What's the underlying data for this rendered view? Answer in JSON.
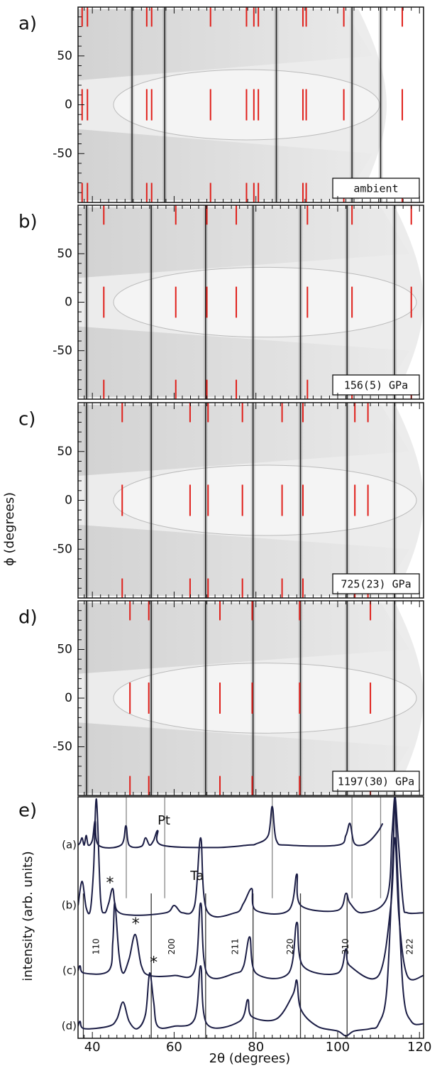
{
  "chart_data": {
    "type": "diffraction-panels",
    "xlabel": "2θ (degrees)",
    "xlim": [
      36.5,
      121
    ],
    "xticks": [
      40,
      60,
      80,
      100,
      120
    ],
    "xminorticks": [
      38,
      42,
      44,
      46,
      48,
      50,
      52,
      54,
      56,
      58,
      62,
      64,
      66,
      68,
      70,
      72,
      74,
      76,
      78,
      82,
      84,
      86,
      88,
      90,
      92,
      94,
      96,
      98,
      102,
      104,
      106,
      108,
      110,
      112,
      114,
      116,
      118
    ],
    "image_panels": {
      "ylabel": "ϕ (degrees)",
      "ylim": [
        -100,
        100
      ],
      "yticks": [
        -50,
        0,
        50
      ],
      "yminorticks": [
        -90,
        -80,
        -70,
        -60,
        -40,
        -30,
        -20,
        -10,
        10,
        20,
        30,
        40,
        60,
        70,
        80,
        90
      ],
      "panels": [
        {
          "label": "a)",
          "condition": "ambient",
          "black_lines": [
            49.7,
            57.7,
            85,
            103.5,
            110.5
          ],
          "red_lines": [
            37.5,
            38.8,
            53.3,
            54.5,
            68.9,
            77.7,
            79.5,
            80.6,
            91.5,
            92.3,
            101.5,
            115.8
          ]
        },
        {
          "label": "b)",
          "condition": "156(5) GPa",
          "black_lines": [
            38.6,
            54.4,
            67.7,
            79.3,
            90.9,
            102.3,
            113.9
          ],
          "red_lines": [
            42.8,
            60.4,
            68,
            75.2,
            92.6,
            103.5,
            118
          ]
        },
        {
          "label": "c)",
          "condition": "725(23) GPa",
          "black_lines": [
            38.6,
            54.4,
            67.7,
            79.3,
            90.9,
            102.3,
            113.9
          ],
          "red_lines": [
            47.3,
            63.9,
            68.3,
            76.7,
            86.4,
            91.5,
            104.2,
            107.4
          ]
        },
        {
          "label": "d)",
          "condition": "1197(30) GPa",
          "black_lines": [
            38.6,
            54.4,
            67.7,
            79.3,
            90.9,
            102.3,
            113.9
          ],
          "red_lines": [
            49.2,
            53.8,
            71.2,
            79.1,
            90.7,
            108
          ]
        }
      ]
    },
    "spectra": {
      "label": "e)",
      "ylabel": "intensity (arb. units)",
      "ylim": [
        0,
        100
      ],
      "pt_lines": [
        48.3,
        57.7,
        84,
        103.5,
        110.5
      ],
      "black_lines": [
        37.8,
        54.4,
        67.7,
        79.3,
        90.9,
        102.3
      ],
      "series": [
        {
          "name": "(a)",
          "color": "#1b1d45",
          "x": [
            36.5,
            37,
            37.5,
            38,
            38.5,
            39,
            40,
            40.7,
            41.5,
            47,
            48.2,
            49,
            52,
            53,
            54,
            55,
            56,
            57,
            70,
            78,
            80,
            83,
            84,
            85,
            88,
            100,
            102,
            103,
            104,
            106,
            108,
            110,
            111
          ],
          "values": [
            80,
            81,
            83,
            80,
            84,
            80,
            82,
            90,
            80,
            80,
            88,
            80,
            79.5,
            83,
            80,
            82,
            86,
            80,
            79,
            80,
            80.5,
            84,
            96,
            82,
            80,
            80,
            84,
            89,
            81,
            80,
            82,
            86,
            89
          ]
        },
        {
          "name": "(b)",
          "color": "#1b1d45",
          "x": [
            36.5,
            37.5,
            38.5,
            39.5,
            40.3,
            41,
            42,
            43,
            44,
            45,
            46,
            50,
            58,
            60,
            62,
            65,
            66.5,
            68,
            75,
            77,
            79,
            80,
            88,
            90,
            91,
            100,
            102,
            103,
            106,
            112,
            113.3,
            114,
            114.7,
            116,
            117,
            121
          ],
          "values": [
            55,
            65,
            54,
            53,
            70,
            99,
            58,
            52,
            56,
            62,
            53,
            51,
            52,
            55,
            52,
            55,
            83,
            53,
            52,
            56,
            62,
            53,
            53,
            68,
            55,
            53,
            60,
            56,
            52,
            58,
            85,
            100,
            85,
            56,
            52,
            52
          ]
        },
        {
          "name": "(c)",
          "color": "#1b1d45",
          "x": [
            36.5,
            37,
            38,
            44,
            45,
            45.5,
            46.5,
            47.5,
            49,
            50.5,
            52,
            54,
            60,
            65,
            66.5,
            68,
            75,
            77,
            78.5,
            80,
            88,
            90,
            91.5,
            100,
            102,
            103,
            110,
            113,
            114,
            115,
            117,
            121
          ],
          "values": [
            28,
            30,
            27,
            28,
            40,
            56,
            35,
            27,
            33,
            43,
            30,
            26,
            26,
            28,
            56,
            27,
            27,
            30,
            42,
            27,
            27,
            48,
            30,
            27,
            37,
            30,
            26,
            55,
            83,
            50,
            26,
            26
          ]
        },
        {
          "name": "(d)",
          "color": "#1b1d45",
          "x": [
            36.5,
            37,
            38,
            44,
            46,
            47.5,
            49,
            51,
            53,
            54,
            55,
            56,
            60,
            65,
            66.5,
            68,
            76,
            78,
            79,
            85,
            89,
            90,
            91,
            95,
            100,
            102,
            104,
            108,
            110,
            112,
            113.5,
            114,
            114.5,
            116,
            118,
            121
          ],
          "values": [
            5,
            7,
            4,
            5,
            8,
            15,
            7,
            4,
            10,
            27,
            15,
            5,
            5,
            8,
            30,
            6,
            7,
            16,
            9,
            8,
            18,
            24,
            12,
            5,
            3,
            1,
            3,
            4,
            6,
            20,
            75,
            100,
            75,
            20,
            7,
            6
          ]
        }
      ],
      "hkl_labels": [
        {
          "x": 41,
          "y": 38,
          "label": "110"
        },
        {
          "x": 59.5,
          "y": 38,
          "label": "200"
        },
        {
          "x": 75,
          "y": 38,
          "label": "211"
        },
        {
          "x": 88.5,
          "y": 38,
          "label": "220"
        },
        {
          "x": 102,
          "y": 38,
          "label": "310"
        },
        {
          "x": 117.7,
          "y": 38,
          "label": "222"
        }
      ],
      "annotations": [
        {
          "text": "Pt",
          "x": 57.5,
          "y": 90
        },
        {
          "text": "Ta",
          "x": 65.6,
          "y": 67
        },
        {
          "text": "*",
          "x": 44.3,
          "y": 64
        },
        {
          "text": "*",
          "x": 50.6,
          "y": 47
        },
        {
          "text": "*",
          "x": 55,
          "y": 31
        }
      ]
    }
  }
}
